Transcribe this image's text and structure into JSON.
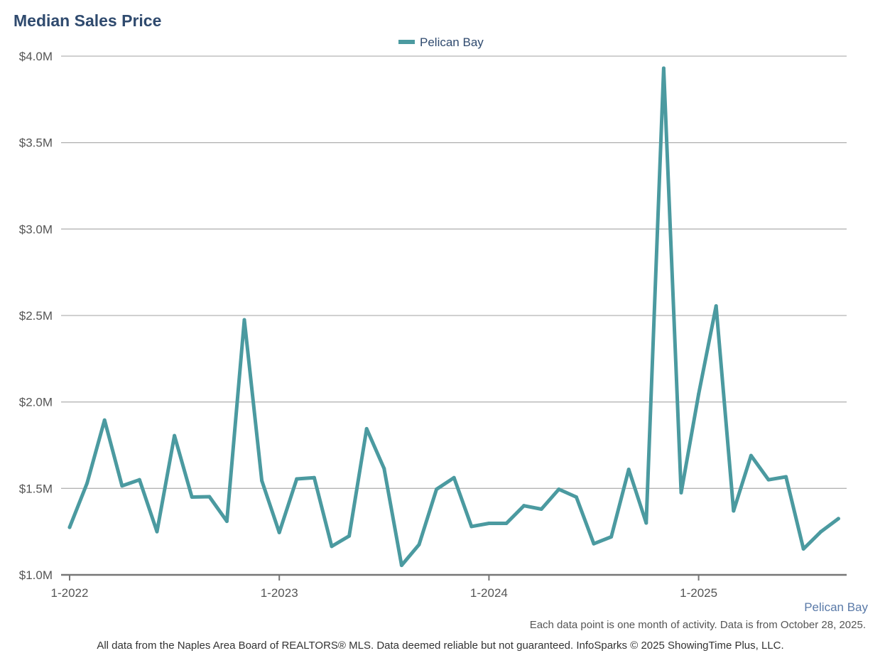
{
  "chart_data": {
    "type": "line",
    "title": "Median Sales Price",
    "xlabel": "",
    "ylabel": "",
    "ylim": [
      1000000,
      4000000
    ],
    "y_ticks": [
      1000000,
      1500000,
      2000000,
      2500000,
      3000000,
      3500000,
      4000000
    ],
    "y_tick_labels": [
      "$1.0M",
      "$1.5M",
      "$2.0M",
      "$2.5M",
      "$3.0M",
      "$3.5M",
      "$4.0M"
    ],
    "x_tick_labels": [
      "1-2022",
      "1-2023",
      "1-2024",
      "1-2025"
    ],
    "legend_position": "top-center",
    "grid": true,
    "categories": [
      "1-2022",
      "2-2022",
      "3-2022",
      "4-2022",
      "5-2022",
      "6-2022",
      "7-2022",
      "8-2022",
      "9-2022",
      "10-2022",
      "11-2022",
      "12-2022",
      "1-2023",
      "2-2023",
      "3-2023",
      "4-2023",
      "5-2023",
      "6-2023",
      "7-2023",
      "8-2023",
      "9-2023",
      "10-2023",
      "11-2023",
      "12-2023",
      "1-2024",
      "2-2024",
      "3-2024",
      "4-2024",
      "5-2024",
      "6-2024",
      "7-2024",
      "8-2024",
      "9-2024",
      "10-2024",
      "11-2024",
      "12-2024",
      "1-2025",
      "2-2025",
      "3-2025",
      "4-2025",
      "5-2025",
      "6-2025",
      "7-2025",
      "8-2025",
      "9-2025"
    ],
    "series": [
      {
        "name": "Pelican Bay",
        "color": "#4b9aa0",
        "values": [
          1275000,
          1530000,
          1895000,
          1515000,
          1550000,
          1250000,
          1805000,
          1450000,
          1452000,
          1310000,
          2475000,
          1545000,
          1245000,
          1555000,
          1562000,
          1165000,
          1225000,
          1845000,
          1615000,
          1055000,
          1175000,
          1495000,
          1562000,
          1280000,
          1298000,
          1298000,
          1400000,
          1380000,
          1495000,
          1450000,
          1180000,
          1220000,
          1610000,
          1300000,
          3930000,
          1475000,
          2045000,
          2555000,
          1370000,
          1690000,
          1550000,
          1567000,
          1150000,
          1250000,
          1325000
        ]
      }
    ]
  },
  "market_label": "Pelican Bay",
  "note": "Each data point is one month of activity. Data is from October 28, 2025.",
  "footer": "All data from the Naples Area Board of REALTORS® MLS. Data deemed reliable but not guaranteed. InfoSparks © 2025 ShowingTime Plus, LLC."
}
